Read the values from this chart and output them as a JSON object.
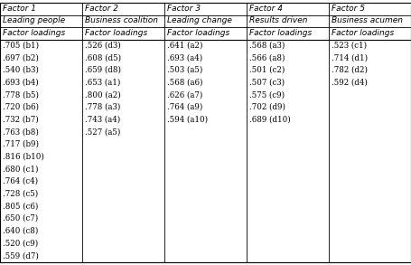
{
  "columns": [
    {
      "header1": "Factor 1",
      "header2": "Leading people",
      "header3": "Factor loadings",
      "rows": [
        ".705 (b1)",
        ".697 (b2)",
        ".540 (b3)",
        ".693 (b4)",
        ".778 (b5)",
        ".720 (b6)",
        ".732 (b7)",
        ".763 (b8)",
        ".717 (b9)",
        ".816 (b10)",
        ".680 (c1)",
        ".764 (c4)",
        ".728 (c5)",
        ".805 (c6)",
        ".650 (c7)",
        ".640 (c8)",
        ".520 (c9)",
        ".559 (d7)"
      ]
    },
    {
      "header1": "Factor 2",
      "header2": "Business coalition",
      "header3": "Factor loadings",
      "rows": [
        ".526 (d3)",
        ".608 (d5)",
        ".659 (d8)",
        ".653 (a1)",
        ".800 (a2)",
        ".778 (a3)",
        ".743 (a4)",
        ".527 (a5)",
        "",
        "",
        "",
        "",
        "",
        "",
        "",
        "",
        "",
        ""
      ]
    },
    {
      "header1": "Factor 3",
      "header2": "Leading change",
      "header3": "Factor loadings",
      "rows": [
        ".641 (a2)",
        ".693 (a4)",
        ".503 (a5)",
        ".568 (a6)",
        ".626 (a7)",
        ".764 (a9)",
        ".594 (a10)",
        "",
        "",
        "",
        "",
        "",
        "",
        "",
        "",
        "",
        "",
        ""
      ]
    },
    {
      "header1": "Factor 4",
      "header2": "Results driven",
      "header3": "Factor loadings",
      "rows": [
        ".568 (a3)",
        ".566 (a8)",
        ".501 (c2)",
        ".507 (c3)",
        ".575 (c9)",
        ".702 (d9)",
        ".689 (d10)",
        "",
        "",
        "",
        "",
        "",
        "",
        "",
        "",
        "",
        "",
        ""
      ]
    },
    {
      "header1": "Factor 5",
      "header2": "Business acumen",
      "header3": "Factor loadings",
      "rows": [
        ".523 (c1)",
        ".714 (d1)",
        ".782 (d2)",
        ".592 (d4)",
        "",
        "",
        "",
        "",
        "",
        "",
        "",
        "",
        "",
        "",
        "",
        "",
        "",
        ""
      ]
    }
  ],
  "bg_color": "#ffffff",
  "line_color": "#000000",
  "text_color": "#000000",
  "font_size": 6.2,
  "header_font_size": 6.5
}
